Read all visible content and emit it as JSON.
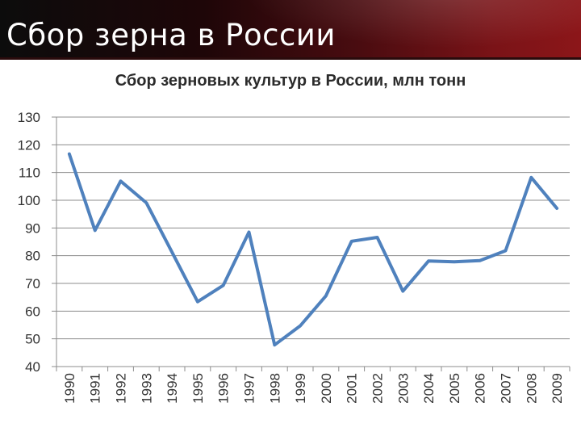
{
  "slide": {
    "title": "Сбор зерна в России"
  },
  "chart_data": {
    "type": "line",
    "title": "Сбор зерновых культур в России, млн тонн",
    "xlabel": "",
    "ylabel": "",
    "x": [
      "1990",
      "1991",
      "1992",
      "1993",
      "1994",
      "1995",
      "1996",
      "1997",
      "1998",
      "1999",
      "2000",
      "2001",
      "2002",
      "2003",
      "2004",
      "2005",
      "2006",
      "2007",
      "2008",
      "2009"
    ],
    "series": [
      {
        "values": [
          116.7,
          89.1,
          106.9,
          99.1,
          81.3,
          63.4,
          69.3,
          88.5,
          47.8,
          54.7,
          65.5,
          85.2,
          86.6,
          67.2,
          78.1,
          77.8,
          78.2,
          81.8,
          108.2,
          97.1
        ]
      }
    ],
    "yticks": [
      "40",
      "50",
      "60",
      "70",
      "80",
      "90",
      "100",
      "110",
      "120",
      "130"
    ],
    "ylim": [
      40,
      130
    ],
    "grid": "horizontal",
    "legend": "none",
    "line_color": "#4f81bd",
    "grid_color": "#8c8c8c"
  }
}
